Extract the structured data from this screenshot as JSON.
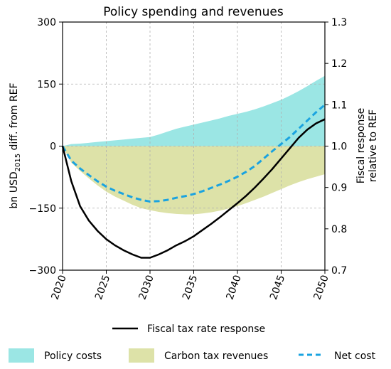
{
  "chart_data": {
    "type": "area",
    "title": "Policy spending and revenues",
    "xlabel": "",
    "ylabel_left_main": "bn USD",
    "ylabel_left_sub": "2015",
    "ylabel_left_rest": " diff. from REF",
    "ylabel_right_line1": "Fiscal response",
    "ylabel_right_line2": "relative to REF",
    "x_ticks": [
      "2020",
      "2025",
      "2030",
      "2035",
      "2040",
      "2045",
      "2050"
    ],
    "y_left_ticks": [
      "300",
      "150",
      "0",
      "−150",
      "−300"
    ],
    "y_right_ticks": [
      "1.3",
      "1.2",
      "1.1",
      "1.0",
      "0.9",
      "0.8",
      "0.7"
    ],
    "xlim": [
      2020,
      2050
    ],
    "ylim_left": [
      -300,
      300
    ],
    "ylim_right": [
      0.7,
      1.3
    ],
    "grid": true,
    "colors": {
      "policy_costs": "#9be6e4",
      "carbon_tax": "#dde2a8",
      "net_cost": "#1aa3e0",
      "fiscal": "#000000",
      "grid": "#b0b0b0"
    },
    "x": [
      2020,
      2021,
      2022,
      2023,
      2024,
      2025,
      2026,
      2027,
      2028,
      2029,
      2030,
      2031,
      2032,
      2033,
      2034,
      2035,
      2036,
      2037,
      2038,
      2039,
      2040,
      2041,
      2042,
      2043,
      2044,
      2045,
      2046,
      2047,
      2048,
      2049,
      2050
    ],
    "series": [
      {
        "name": "Policy costs",
        "values": [
          0,
          5,
          6,
          8,
          10,
          12,
          14,
          16,
          18,
          20,
          22,
          28,
          35,
          42,
          47,
          52,
          57,
          62,
          67,
          73,
          78,
          83,
          89,
          96,
          104,
          112,
          122,
          133,
          145,
          158,
          170
        ]
      },
      {
        "name": "Carbon tax revenues",
        "values": [
          0,
          -40,
          -60,
          -78,
          -95,
          -110,
          -122,
          -132,
          -142,
          -150,
          -155,
          -159,
          -162,
          -164,
          -165,
          -165,
          -163,
          -160,
          -156,
          -151,
          -145,
          -138,
          -130,
          -122,
          -113,
          -104,
          -95,
          -87,
          -80,
          -74,
          -68
        ]
      },
      {
        "name": "Net cost",
        "values": [
          0,
          -35,
          -54,
          -70,
          -85,
          -98,
          -108,
          -116,
          -124,
          -130,
          -134,
          -133,
          -130,
          -125,
          -121,
          -116,
          -109,
          -101,
          -93,
          -84,
          -74,
          -62,
          -48,
          -30,
          -12,
          5,
          22,
          42,
          62,
          82,
          100
        ]
      },
      {
        "name": "Fiscal tax rate response",
        "values": [
          1.0,
          0.915,
          0.855,
          0.82,
          0.795,
          0.775,
          0.76,
          0.748,
          0.738,
          0.73,
          0.73,
          0.738,
          0.748,
          0.76,
          0.77,
          0.782,
          0.797,
          0.812,
          0.828,
          0.845,
          0.862,
          0.88,
          0.9,
          0.922,
          0.945,
          0.97,
          0.995,
          1.02,
          1.04,
          1.055,
          1.065
        ]
      }
    ],
    "legend": {
      "fiscal": "Fiscal tax rate response",
      "policy_costs": "Policy costs",
      "carbon_tax": "Carbon tax revenues",
      "net_cost": "Net cost"
    }
  }
}
